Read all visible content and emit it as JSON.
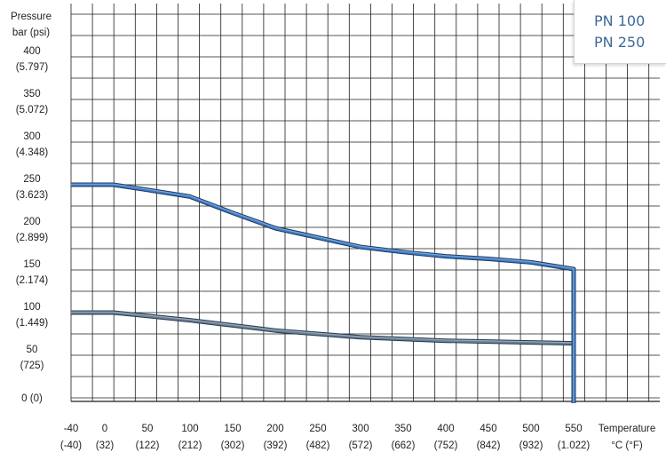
{
  "chart_data": {
    "type": "line",
    "y_axis_title": [
      "Pressure",
      "bar (psi)"
    ],
    "x_axis_title": [
      "Temperature",
      "°C (°F)"
    ],
    "y_ticks": [
      {
        "value": 0,
        "label1": "0 (0)",
        "label2": ""
      },
      {
        "value": 50,
        "label1": "50",
        "label2": "(725)"
      },
      {
        "value": 100,
        "label1": "100",
        "label2": "(1.449)"
      },
      {
        "value": 150,
        "label1": "150",
        "label2": "(2.174)"
      },
      {
        "value": 200,
        "label1": "200",
        "label2": "(2.899)"
      },
      {
        "value": 250,
        "label1": "250",
        "label2": "(3.623)"
      },
      {
        "value": 300,
        "label1": "300",
        "label2": "(4.348)"
      },
      {
        "value": 350,
        "label1": "350",
        "label2": "(5.072)"
      },
      {
        "value": 400,
        "label1": "400",
        "label2": "(5.797)"
      }
    ],
    "x_ticks": [
      {
        "value": -40,
        "label1": "-40",
        "label2": "(-40)"
      },
      {
        "value": 0,
        "label1": "0",
        "label2": "(32)"
      },
      {
        "value": 50,
        "label1": "50",
        "label2": "(122)"
      },
      {
        "value": 100,
        "label1": "100",
        "label2": "(212)"
      },
      {
        "value": 150,
        "label1": "150",
        "label2": "(302)"
      },
      {
        "value": 200,
        "label1": "200",
        "label2": "(392)"
      },
      {
        "value": 250,
        "label1": "250",
        "label2": "(482)"
      },
      {
        "value": 300,
        "label1": "300",
        "label2": "(572)"
      },
      {
        "value": 350,
        "label1": "350",
        "label2": "(662)"
      },
      {
        "value": 400,
        "label1": "400",
        "label2": "(752)"
      },
      {
        "value": 450,
        "label1": "450",
        "label2": "(842)"
      },
      {
        "value": 500,
        "label1": "500",
        "label2": "(932)"
      },
      {
        "value": 550,
        "label1": "550",
        "label2": "(1.022)"
      }
    ],
    "series": [
      {
        "name": "PN 100",
        "color": "#6f7f8f",
        "points": [
          [
            -40,
            100
          ],
          [
            10,
            100
          ],
          [
            50,
            96
          ],
          [
            100,
            91
          ],
          [
            150,
            85
          ],
          [
            200,
            79
          ],
          [
            250,
            75
          ],
          [
            300,
            71
          ],
          [
            350,
            69
          ],
          [
            400,
            67
          ],
          [
            450,
            66
          ],
          [
            500,
            65
          ],
          [
            550,
            64
          ],
          [
            550,
            0
          ]
        ]
      },
      {
        "name": "PN 250",
        "color": "#3d7cc9",
        "points": [
          [
            -40,
            250
          ],
          [
            10,
            250
          ],
          [
            50,
            244
          ],
          [
            100,
            236
          ],
          [
            150,
            217
          ],
          [
            200,
            199
          ],
          [
            250,
            188
          ],
          [
            300,
            177
          ],
          [
            350,
            171
          ],
          [
            400,
            166
          ],
          [
            450,
            163
          ],
          [
            500,
            159
          ],
          [
            550,
            151
          ],
          [
            550,
            0
          ]
        ]
      }
    ],
    "legend_position": "top-right",
    "grid": true
  }
}
